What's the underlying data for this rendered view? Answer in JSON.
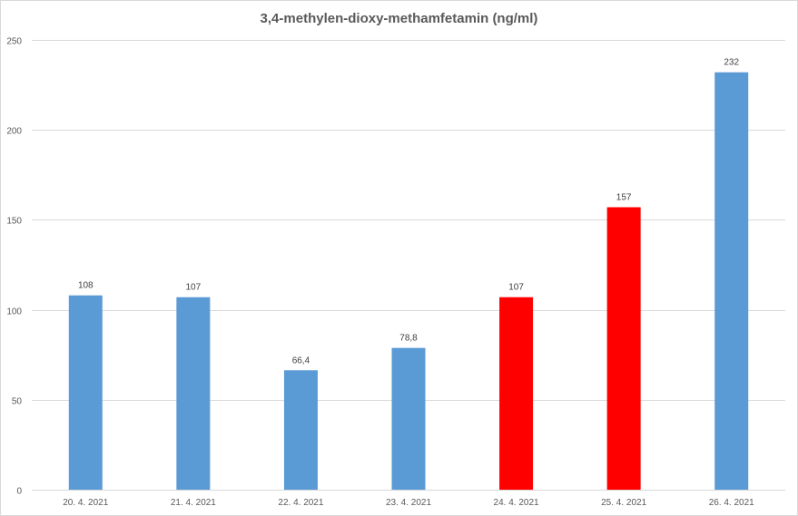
{
  "chart_data": {
    "type": "bar",
    "title": "3,4-methylen-dioxy-methamfetamin (ng/ml)",
    "xlabel": "",
    "ylabel": "",
    "categories": [
      "20. 4. 2021",
      "21. 4. 2021",
      "22. 4. 2021",
      "23. 4. 2021",
      "24. 4. 2021",
      "25. 4. 2021",
      "26. 4. 2021"
    ],
    "values": [
      108,
      107,
      66.4,
      78.8,
      107,
      157,
      232
    ],
    "value_labels": [
      "108",
      "107",
      "66,4",
      "78,8",
      "107",
      "157",
      "232"
    ],
    "bar_colors": [
      "#5b9bd5",
      "#5b9bd5",
      "#5b9bd5",
      "#5b9bd5",
      "#ff0000",
      "#ff0000",
      "#5b9bd5"
    ],
    "ylim": [
      0,
      250
    ],
    "yticks": [
      0,
      50,
      100,
      150,
      200,
      250
    ],
    "grid": true,
    "legend": "none"
  },
  "colors": {
    "blue": "#5b9bd5",
    "red": "#ff0000",
    "grid": "#d9d9d9",
    "text": "#595959"
  }
}
